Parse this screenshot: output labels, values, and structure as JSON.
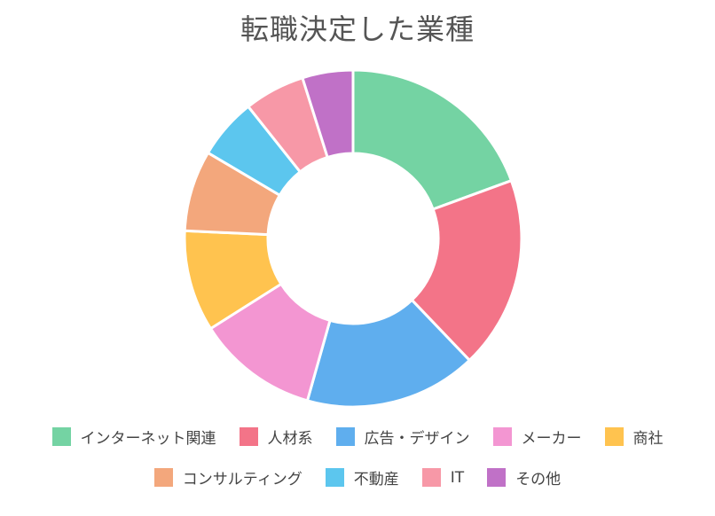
{
  "chart_data": {
    "type": "pie",
    "title": "転職決定した業種",
    "categories": [
      "インターネット関連",
      "人材系",
      "広告・デザイン",
      "メーカー",
      "商社",
      "コンサルティング",
      "不動産",
      "IT",
      "その他"
    ],
    "values": [
      20,
      19,
      17,
      12,
      10,
      8,
      6,
      6,
      5
    ],
    "colors": [
      "#74d3a3",
      "#f37488",
      "#5faeee",
      "#f396d2",
      "#ffc34f",
      "#f3a77c",
      "#5cc6ee",
      "#f798a7",
      "#c071c7"
    ],
    "legend_position": "bottom"
  }
}
